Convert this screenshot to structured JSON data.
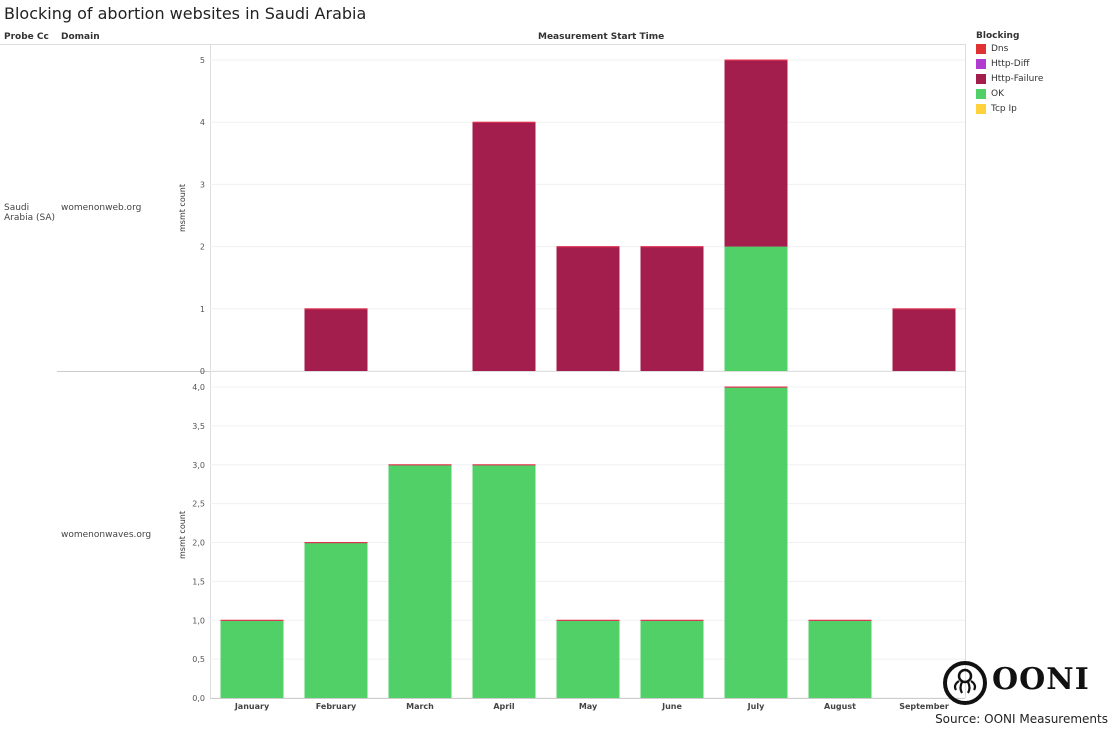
{
  "title": "Blocking of abortion websites in Saudi Arabia",
  "headers": {
    "probe_cc": "Probe Cc",
    "domain": "Domain",
    "column": "Measurement Start Time"
  },
  "rows": {
    "country": "Saudi Arabia (SA)",
    "domain_1": "womenonweb.org",
    "domain_2": "womenonwaves.org"
  },
  "legend": {
    "title": "Blocking",
    "items": [
      {
        "label": "Dns",
        "color": "#e03232"
      },
      {
        "label": "Http-Diff",
        "color": "#b03cd0"
      },
      {
        "label": "Http-Failure",
        "color": "#a31d4d"
      },
      {
        "label": "OK",
        "color": "#52d068"
      },
      {
        "label": "Tcp Ip",
        "color": "#ffd23c"
      }
    ]
  },
  "source": "Source: OONI Measurements",
  "logo_text": "OONI",
  "chart_data": [
    {
      "type": "bar",
      "stacked": true,
      "domain": "womenonweb.org",
      "ylabel": "msmt count",
      "ylim": [
        0,
        5
      ],
      "yticks": [
        "0",
        "1",
        "2",
        "3",
        "4",
        "5"
      ],
      "categories": [
        "January",
        "February",
        "March",
        "April",
        "May",
        "June",
        "July",
        "August",
        "September"
      ],
      "series": [
        {
          "name": "OK",
          "values": [
            0,
            0,
            0,
            0,
            0,
            0,
            2,
            0,
            0
          ]
        },
        {
          "name": "Http-Failure",
          "values": [
            0,
            1,
            0,
            4,
            2,
            2,
            3,
            0,
            1
          ]
        }
      ]
    },
    {
      "type": "bar",
      "stacked": true,
      "domain": "womenonwaves.org",
      "ylabel": "msmt count",
      "ylim": [
        0,
        4
      ],
      "yticks": [
        "0,0",
        "0,5",
        "1,0",
        "1,5",
        "2,0",
        "2,5",
        "3,0",
        "3,5",
        "4,0"
      ],
      "categories": [
        "January",
        "February",
        "March",
        "April",
        "May",
        "June",
        "July",
        "August",
        "September"
      ],
      "series": [
        {
          "name": "OK",
          "values": [
            1,
            2,
            3,
            3,
            1,
            1,
            4,
            1,
            0
          ]
        },
        {
          "name": "Http-Failure",
          "values": [
            0,
            0,
            0,
            0,
            0,
            0,
            0,
            0,
            0
          ]
        }
      ]
    }
  ]
}
